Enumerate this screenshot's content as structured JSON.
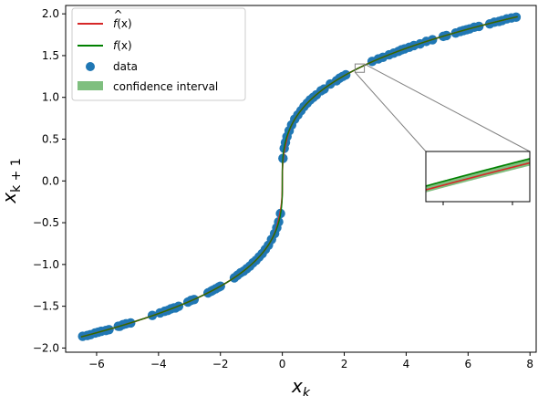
{
  "chart_data": {
    "type": "scatter",
    "xlabel": "x_k",
    "xlabel_main": "x",
    "xlabel_sub": "k",
    "ylabel": "x_{k+1}",
    "ylabel_main": "x",
    "ylabel_sub": "k + 1",
    "xlim": [
      -7,
      8.2
    ],
    "ylim": [
      -2.05,
      2.1
    ],
    "xticks": [
      -6,
      -4,
      -2,
      0,
      2,
      4,
      6,
      8
    ],
    "xtick_labels": [
      "−6",
      "−4",
      "−2",
      "0",
      "2",
      "4",
      "6",
      "8"
    ],
    "yticks": [
      -2.0,
      -1.5,
      -1.0,
      -0.5,
      0.0,
      0.5,
      1.0,
      1.5,
      2.0
    ],
    "ytick_labels": [
      "−2.0",
      "−1.5",
      "−1.0",
      "−0.5",
      "0.0",
      "0.5",
      "1.0",
      "1.5",
      "2.0"
    ],
    "grid": false,
    "legend_position": "top-left",
    "legend": [
      {
        "label_main": "f",
        "label_rest": "(x)",
        "hat": true,
        "kind": "line",
        "color": "#d62728"
      },
      {
        "label_main": "f",
        "label_rest": "(x)",
        "hat": false,
        "kind": "line",
        "color": "#008000"
      },
      {
        "label": "data",
        "kind": "marker",
        "color": "#1f77b4"
      },
      {
        "label": "confidence interval",
        "kind": "patch",
        "color": "#7fbf7f"
      }
    ],
    "curve": "sign(x)*cbrt(|x|)",
    "series": [
      {
        "kind": "scatter",
        "color": "#1f77b4",
        "x": [
          -6.45,
          -6.3,
          -6.2,
          -6.05,
          -5.95,
          -5.85,
          -5.7,
          -5.6,
          -5.3,
          -5.25,
          -5.15,
          -5.05,
          -4.9,
          -4.2,
          -3.95,
          -3.8,
          -3.7,
          -3.6,
          -3.5,
          -3.45,
          -3.35,
          -3.05,
          -2.95,
          -2.85,
          -2.4,
          -2.3,
          -2.25,
          -2.15,
          -2.05,
          -2.0,
          -1.55,
          -1.45,
          -1.35,
          -1.25,
          -1.15,
          -1.05,
          -0.95,
          -0.85,
          -0.75,
          -0.65,
          -0.55,
          -0.45,
          -0.35,
          -0.25,
          -0.18,
          -0.12,
          -0.06,
          0.02,
          0.06,
          0.1,
          0.15,
          0.22,
          0.3,
          0.4,
          0.5,
          0.6,
          0.7,
          0.8,
          0.9,
          1.0,
          1.1,
          1.25,
          1.35,
          1.55,
          1.75,
          1.85,
          1.95,
          2.05,
          2.9,
          3.1,
          3.25,
          3.45,
          3.6,
          3.75,
          3.85,
          3.95,
          4.1,
          4.25,
          4.45,
          4.65,
          4.85,
          5.2,
          5.3,
          5.6,
          5.75,
          5.85,
          5.95,
          6.05,
          6.2,
          6.35,
          6.7,
          6.85,
          7.0,
          7.1,
          7.25,
          7.4,
          7.55
        ],
        "y": [
          -1.86,
          -1.85,
          -1.84,
          -1.82,
          -1.81,
          -1.8,
          -1.79,
          -1.78,
          -1.74,
          -1.74,
          -1.72,
          -1.71,
          -1.7,
          -1.61,
          -1.58,
          -1.56,
          -1.55,
          -1.53,
          -1.52,
          -1.52,
          -1.5,
          -1.45,
          -1.43,
          -1.42,
          -1.34,
          -1.32,
          -1.31,
          -1.29,
          -1.27,
          -1.26,
          -1.16,
          -1.13,
          -1.1,
          -1.08,
          -1.05,
          -1.02,
          -0.98,
          -0.95,
          -0.91,
          -0.87,
          -0.82,
          -0.77,
          -0.7,
          -0.63,
          -0.56,
          -0.49,
          -0.39,
          0.27,
          0.39,
          0.46,
          0.53,
          0.6,
          0.67,
          0.74,
          0.79,
          0.84,
          0.89,
          0.93,
          0.97,
          1.0,
          1.03,
          1.08,
          1.1,
          1.16,
          1.2,
          1.23,
          1.25,
          1.27,
          1.43,
          1.46,
          1.48,
          1.51,
          1.53,
          1.55,
          1.57,
          1.58,
          1.6,
          1.62,
          1.64,
          1.67,
          1.69,
          1.73,
          1.74,
          1.77,
          1.79,
          1.8,
          1.81,
          1.82,
          1.84,
          1.85,
          1.88,
          1.9,
          1.91,
          1.92,
          1.94,
          1.95,
          1.96
        ]
      },
      {
        "kind": "line",
        "label": "f(x)",
        "color": "#008000"
      },
      {
        "kind": "line",
        "label": "f̂(x)",
        "color": "#d62728"
      },
      {
        "kind": "band",
        "label": "confidence interval",
        "color": "#7fbf7f"
      }
    ],
    "inset": {
      "xlim": [
        2.35,
        2.65
      ],
      "ylim": [
        1.3,
        1.4
      ],
      "ticks": "none",
      "connected_to": "main axes near x≈2.5, y≈1.35"
    }
  }
}
